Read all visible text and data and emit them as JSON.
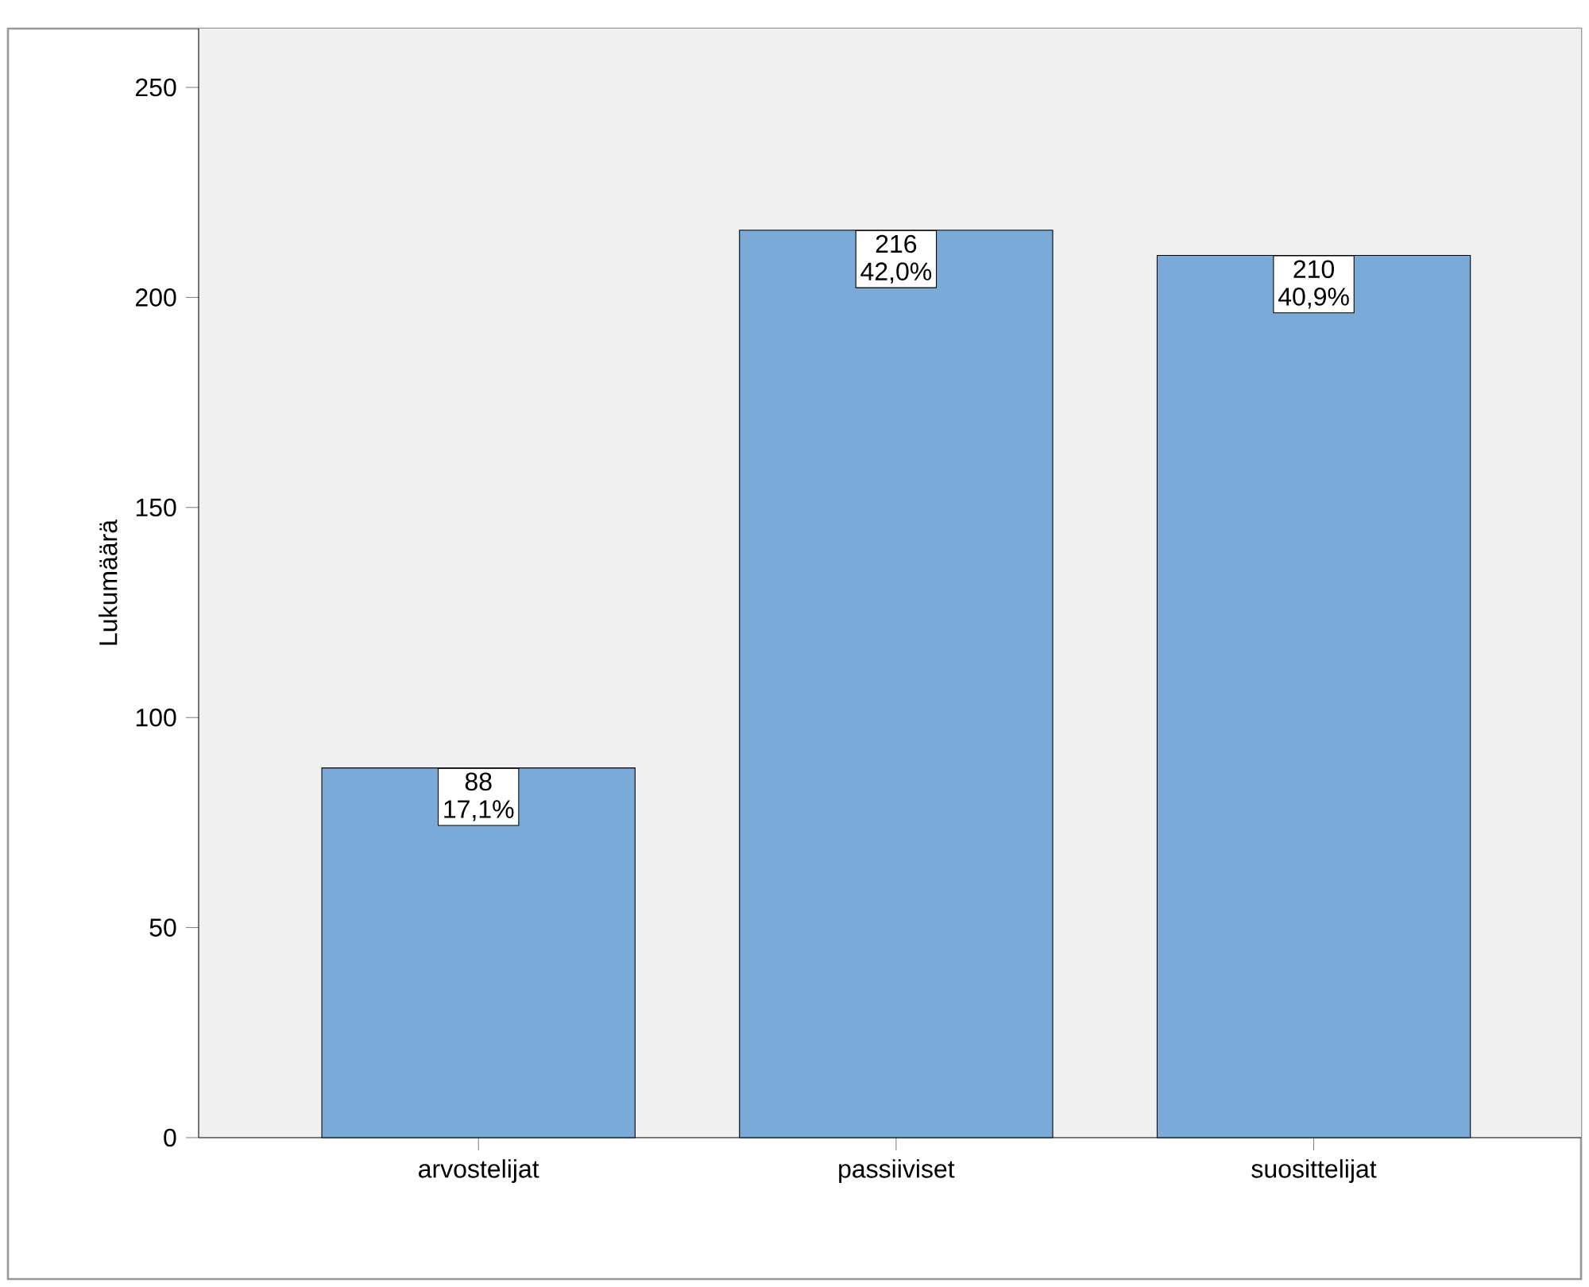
{
  "chart_data": {
    "type": "bar",
    "ylabel": "Lukumäärä",
    "categories": [
      "arvostelijat",
      "passiiviset",
      "suosittelijat"
    ],
    "values": [
      88,
      216,
      210
    ],
    "value_labels": [
      "88 17,1%",
      "216 42,0%",
      "210 40,9%"
    ],
    "color": "#7aaad7",
    "ylim": [
      0,
      264
    ],
    "yticks": [
      0,
      50,
      100,
      150,
      200,
      250
    ]
  }
}
